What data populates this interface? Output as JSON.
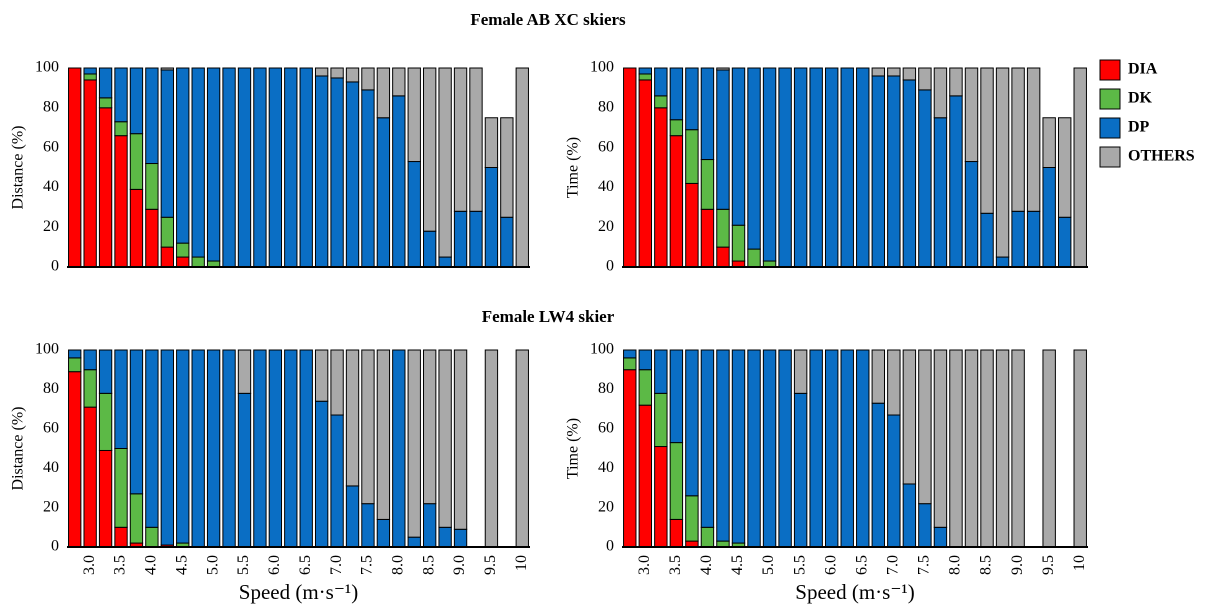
{
  "headings": [
    "Female AB XC skiers",
    "Female LW4 skier"
  ],
  "chart_data": [
    {
      "type": "bar",
      "stacked": true,
      "ylabel": "Distance (%)",
      "ylim": [
        0,
        100
      ],
      "yticks": [
        0,
        20,
        40,
        60,
        80,
        100
      ],
      "legend": "right",
      "series": [
        {
          "name": "DIA",
          "color": "#ff0000",
          "values": [
            100,
            94,
            80,
            66,
            39,
            29,
            10,
            5,
            0,
            0,
            0,
            0,
            0,
            0,
            0,
            0,
            0,
            0,
            0,
            0,
            0,
            0,
            0,
            0,
            0,
            0,
            0,
            0,
            0,
            0
          ]
        },
        {
          "name": "DK",
          "color": "#5cb946",
          "values": [
            0,
            3,
            5,
            7,
            28,
            23,
            15,
            7,
            5,
            3,
            0,
            0,
            0,
            0,
            0,
            0,
            0,
            0,
            0,
            0,
            0,
            0,
            0,
            0,
            0,
            0,
            0,
            0,
            0,
            0
          ]
        },
        {
          "name": "DP",
          "color": "#0a6ec4",
          "values": [
            0,
            3,
            15,
            27,
            33,
            48,
            74,
            88,
            95,
            97,
            100,
            100,
            100,
            100,
            100,
            100,
            96,
            95,
            93,
            89,
            75,
            86,
            53,
            18,
            5,
            28,
            28,
            50,
            25,
            0
          ]
        },
        {
          "name": "OTHERS",
          "color": "#a9a9a9",
          "values": [
            0,
            0,
            0,
            0,
            0,
            0,
            1,
            0,
            0,
            0,
            0,
            0,
            0,
            0,
            0,
            0,
            4,
            5,
            7,
            11,
            25,
            14,
            47,
            82,
            95,
            72,
            72,
            25,
            50,
            100
          ]
        }
      ]
    },
    {
      "type": "bar",
      "stacked": true,
      "ylabel": "Time (%)",
      "ylim": [
        0,
        100
      ],
      "yticks": [
        0,
        20,
        40,
        60,
        80,
        100
      ],
      "series": [
        {
          "color": "#ff0000",
          "values": [
            100,
            94,
            80,
            66,
            42,
            29,
            10,
            3,
            0,
            0,
            0,
            0,
            0,
            0,
            0,
            0,
            0,
            0,
            0,
            0,
            0,
            0,
            0,
            0,
            0,
            0,
            0,
            0,
            0,
            0
          ]
        },
        {
          "color": "#5cb946",
          "values": [
            0,
            3,
            6,
            8,
            27,
            25,
            19,
            18,
            9,
            3,
            0,
            0,
            0,
            0,
            0,
            0,
            0,
            0,
            0,
            0,
            0,
            0,
            0,
            0,
            0,
            0,
            0,
            0,
            0,
            0
          ]
        },
        {
          "color": "#0a6ec4",
          "values": [
            0,
            3,
            14,
            26,
            31,
            46,
            70,
            79,
            91,
            97,
            100,
            100,
            100,
            100,
            100,
            100,
            96,
            96,
            94,
            89,
            75,
            86,
            53,
            27,
            5,
            28,
            28,
            50,
            25,
            0
          ]
        },
        {
          "color": "#a9a9a9",
          "values": [
            0,
            0,
            0,
            0,
            0,
            0,
            1,
            0,
            0,
            0,
            0,
            0,
            0,
            0,
            0,
            0,
            4,
            4,
            6,
            11,
            25,
            14,
            47,
            73,
            95,
            72,
            72,
            25,
            50,
            100
          ]
        }
      ]
    },
    {
      "type": "bar",
      "stacked": true,
      "ylabel": "Distance (%)",
      "xlabel": "Speed (m·s⁻¹)",
      "ylim": [
        0,
        100
      ],
      "yticks": [
        0,
        20,
        40,
        60,
        80,
        100
      ],
      "categories": [
        null,
        "3.0",
        null,
        "3.5",
        null,
        "4.0",
        null,
        "4.5",
        null,
        "5.0",
        null,
        "5.5",
        null,
        "6.0",
        null,
        "6.5",
        null,
        "7.0",
        null,
        "7.5",
        null,
        "8.0",
        null,
        "8.5",
        null,
        "9.0",
        null,
        "9.5",
        null,
        "10"
      ],
      "series": [
        {
          "color": "#ff0000",
          "values": [
            89,
            71,
            49,
            10,
            2,
            0,
            1,
            0,
            0,
            0,
            0,
            0,
            0,
            0,
            0,
            0,
            0,
            0,
            0,
            0,
            0,
            0,
            0,
            0,
            0,
            0,
            0,
            0,
            0,
            0
          ]
        },
        {
          "color": "#5cb946",
          "values": [
            7,
            19,
            29,
            40,
            25,
            10,
            0,
            2,
            0,
            0,
            0,
            0,
            0,
            0,
            0,
            0,
            0,
            0,
            0,
            0,
            0,
            0,
            0,
            0,
            0,
            0,
            0,
            0,
            0,
            0
          ]
        },
        {
          "color": "#0a6ec4",
          "values": [
            4,
            10,
            22,
            50,
            73,
            90,
            99,
            98,
            100,
            100,
            100,
            78,
            100,
            100,
            100,
            100,
            74,
            67,
            31,
            22,
            14,
            100,
            5,
            22,
            10,
            9,
            0,
            0,
            0,
            0
          ]
        },
        {
          "color": "#a9a9a9",
          "values": [
            0,
            0,
            0,
            0,
            0,
            0,
            0,
            0,
            0,
            0,
            0,
            22,
            0,
            0,
            0,
            0,
            26,
            33,
            69,
            78,
            86,
            0,
            95,
            78,
            90,
            91,
            0,
            100,
            0,
            100
          ]
        }
      ]
    },
    {
      "type": "bar",
      "stacked": true,
      "ylabel": "Time (%)",
      "xlabel": "Speed (m·s⁻¹)",
      "ylim": [
        0,
        100
      ],
      "yticks": [
        0,
        20,
        40,
        60,
        80,
        100
      ],
      "categories": [
        null,
        "3.0",
        null,
        "3.5",
        null,
        "4.0",
        null,
        "4.5",
        null,
        "5.0",
        null,
        "5.5",
        null,
        "6.0",
        null,
        "6.5",
        null,
        "7.0",
        null,
        "7.5",
        null,
        "8.0",
        null,
        "8.5",
        null,
        "9.0",
        null,
        "9.5",
        null,
        "10"
      ],
      "series": [
        {
          "color": "#ff0000",
          "values": [
            90,
            72,
            51,
            14,
            3,
            0,
            0,
            0,
            0,
            0,
            0,
            0,
            0,
            0,
            0,
            0,
            0,
            0,
            0,
            0,
            0,
            0,
            0,
            0,
            0,
            0,
            0,
            0,
            0,
            0
          ]
        },
        {
          "color": "#5cb946",
          "values": [
            6,
            18,
            27,
            39,
            23,
            10,
            3,
            2,
            0,
            0,
            0,
            0,
            0,
            0,
            0,
            0,
            0,
            0,
            0,
            0,
            0,
            0,
            0,
            0,
            0,
            0,
            0,
            0,
            0,
            0
          ]
        },
        {
          "color": "#0a6ec4",
          "values": [
            4,
            10,
            22,
            47,
            74,
            90,
            97,
            98,
            100,
            100,
            100,
            78,
            100,
            100,
            100,
            100,
            73,
            67,
            32,
            22,
            10,
            0,
            0,
            0,
            0,
            0,
            0,
            0,
            0,
            0
          ]
        },
        {
          "color": "#a9a9a9",
          "values": [
            0,
            0,
            0,
            0,
            0,
            0,
            0,
            0,
            0,
            0,
            0,
            22,
            0,
            0,
            0,
            0,
            27,
            33,
            68,
            78,
            90,
            100,
            100,
            100,
            100,
            100,
            0,
            100,
            0,
            100
          ]
        }
      ]
    }
  ]
}
